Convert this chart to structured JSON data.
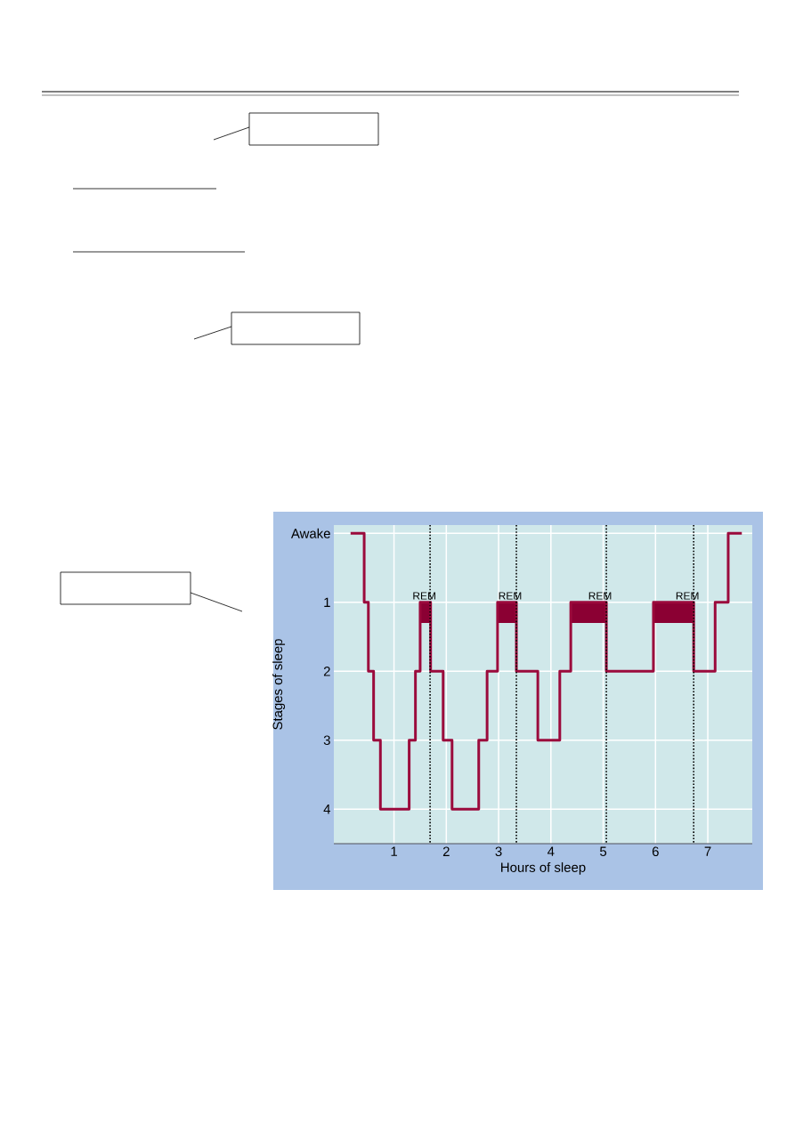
{
  "chart_data": {
    "type": "step",
    "xlabel": "Hours of sleep",
    "ylabel": "Stages of sleep",
    "color": "#9b0a3c",
    "x": [
      0.17,
      0.43,
      0.51,
      0.61,
      0.74,
      1.29,
      1.41,
      1.5,
      1.7,
      1.94,
      2.11,
      2.62,
      2.78,
      2.98,
      3.34,
      3.75,
      4.17,
      4.38,
      5.06,
      5.96,
      6.73,
      7.14,
      7.39,
      7.65
    ],
    "values": [
      0,
      1,
      2,
      3,
      4,
      3,
      2,
      1,
      2,
      3,
      4,
      3,
      2,
      1,
      2,
      3,
      2,
      1,
      2,
      1,
      2,
      1,
      0,
      0
    ],
    "xlim": [
      -0.15,
      7.85
    ],
    "ylim": [
      4.5,
      -0.12
    ],
    "xticks": [
      1,
      2,
      3,
      4,
      5,
      6,
      7
    ],
    "yticks": [
      {
        "value": 0,
        "label": "Awake"
      },
      1,
      2,
      3,
      4
    ],
    "grid": true,
    "ref_lines": [
      {
        "axis": "x",
        "value": 1.69,
        "line_style": "dotted",
        "color": "#000000"
      },
      {
        "axis": "x",
        "value": 3.34,
        "line_style": "dotted",
        "color": "#000000"
      },
      {
        "axis": "x",
        "value": 5.06,
        "line_style": "dotted",
        "color": "#000000"
      },
      {
        "axis": "x",
        "value": 6.73,
        "line_style": "dotted",
        "color": "#000000"
      }
    ],
    "bands": [
      {
        "axis": "x",
        "from": 1.5,
        "to": 1.7,
        "label": "REM",
        "color": "#8b0033"
      },
      {
        "axis": "x",
        "from": 2.98,
        "to": 3.34,
        "label": "REM",
        "color": "#8b0033"
      },
      {
        "axis": "x",
        "from": 4.38,
        "to": 5.06,
        "label": "REM",
        "color": "#8b0033"
      },
      {
        "axis": "x",
        "from": 5.96,
        "to": 6.73,
        "label": "REM",
        "color": "#8b0033"
      }
    ]
  }
}
